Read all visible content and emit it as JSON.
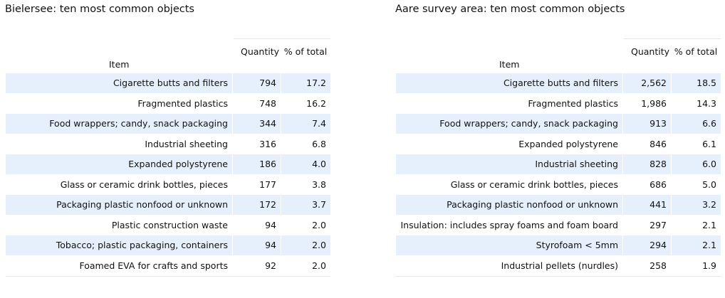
{
  "chart_data": [
    {
      "type": "table",
      "title": "Bielersee: ten most common objects",
      "columns": [
        "Item",
        "Quantity",
        "% of total"
      ],
      "rows": [
        [
          "Cigarette butts and filters",
          "794",
          "17.2"
        ],
        [
          "Fragmented plastics",
          "748",
          "16.2"
        ],
        [
          "Food wrappers; candy, snack packaging",
          "344",
          "7.4"
        ],
        [
          "Industrial sheeting",
          "316",
          "6.8"
        ],
        [
          "Expanded polystyrene",
          "186",
          "4.0"
        ],
        [
          "Glass or ceramic drink bottles, pieces",
          "177",
          "3.8"
        ],
        [
          "Packaging plastic nonfood or unknown",
          "172",
          "3.7"
        ],
        [
          "Plastic construction waste",
          "94",
          "2.0"
        ],
        [
          "Tobacco; plastic  packaging, containers",
          "94",
          "2.0"
        ],
        [
          "Foamed EVA for crafts and sports",
          "92",
          "2.0"
        ]
      ]
    },
    {
      "type": "table",
      "title": "Aare survey area: ten most common objects",
      "columns": [
        "Item",
        "Quantity",
        "% of total"
      ],
      "rows": [
        [
          "Cigarette butts and filters",
          "2,562",
          "18.5"
        ],
        [
          "Fragmented plastics",
          "1,986",
          "14.3"
        ],
        [
          "Food wrappers; candy, snack packaging",
          "913",
          "6.6"
        ],
        [
          "Expanded polystyrene",
          "846",
          "6.1"
        ],
        [
          "Industrial sheeting",
          "828",
          "6.0"
        ],
        [
          "Glass or ceramic drink bottles, pieces",
          "686",
          "5.0"
        ],
        [
          "Packaging plastic nonfood or unknown",
          "441",
          "3.2"
        ],
        [
          "Insulation: includes spray foams and foam board",
          "297",
          "2.1"
        ],
        [
          "Styrofoam < 5mm",
          "294",
          "2.1"
        ],
        [
          "Industrial pellets (nurdles)",
          "258",
          "1.9"
        ]
      ]
    }
  ],
  "colors": {
    "row_shade": "#e6f0fd",
    "text": "#111111",
    "rule": "#e6e6e6"
  }
}
